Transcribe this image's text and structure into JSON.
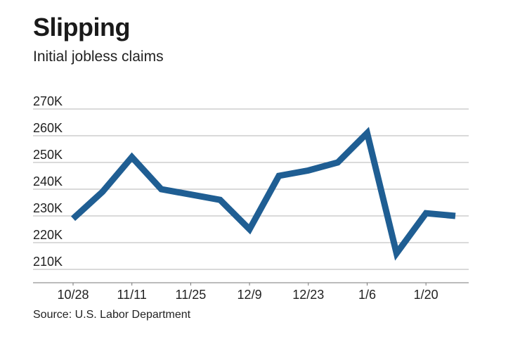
{
  "chart_data": {
    "type": "line",
    "title": "Slipping",
    "subtitle": "Initial jobless claims",
    "source": "Source: U.S. Labor Department",
    "xlabel": "",
    "ylabel": "",
    "ylim": [
      205000,
      270000
    ],
    "y_ticks": [
      {
        "value": 210000,
        "label": "210K"
      },
      {
        "value": 220000,
        "label": "220K"
      },
      {
        "value": 230000,
        "label": "230K"
      },
      {
        "value": 240000,
        "label": "240K"
      },
      {
        "value": 250000,
        "label": "250K"
      },
      {
        "value": 260000,
        "label": "260K"
      },
      {
        "value": 270000,
        "label": "270K"
      }
    ],
    "x_tick_labels": [
      {
        "index": 0,
        "label": "10/28"
      },
      {
        "index": 2,
        "label": "11/11"
      },
      {
        "index": 4,
        "label": "11/25"
      },
      {
        "index": 6,
        "label": "12/9"
      },
      {
        "index": 8,
        "label": "12/23"
      },
      {
        "index": 10,
        "label": "1/6"
      },
      {
        "index": 12,
        "label": "1/20"
      }
    ],
    "series": [
      {
        "name": "Initial jobless claims",
        "color": "#1f5e93",
        "x": [
          "10/28",
          "11/4",
          "11/11",
          "11/18",
          "11/25",
          "12/2",
          "12/9",
          "12/16",
          "12/23",
          "12/30",
          "1/6",
          "1/13",
          "1/20",
          "1/27"
        ],
        "values": [
          229000,
          239000,
          252000,
          240000,
          238000,
          236000,
          225000,
          245000,
          247000,
          250000,
          261000,
          216000,
          231000,
          230000
        ]
      }
    ]
  }
}
